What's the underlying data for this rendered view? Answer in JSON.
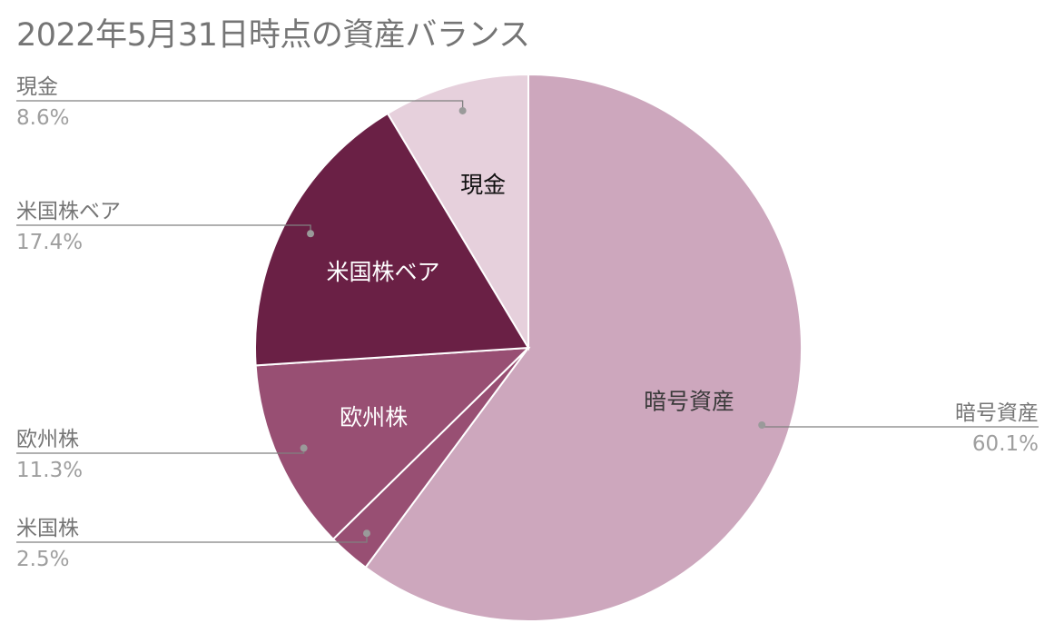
{
  "chart_data": {
    "type": "pie",
    "title": "2022年5月31日時点の資産バランス",
    "slices": [
      {
        "label": "暗号資産",
        "value": 60.1,
        "value_label": "60.1%",
        "color": "#CDA7BD",
        "inner_text_color": "#3a3a3a"
      },
      {
        "label": "米国株",
        "value": 2.5,
        "value_label": "2.5%",
        "color": "#984F73",
        "inner_text_color": "#ffffff"
      },
      {
        "label": "欧州株",
        "value": 11.3,
        "value_label": "11.3%",
        "color": "#984F73",
        "inner_text_color": "#ffffff"
      },
      {
        "label": "米国株ベア",
        "value": 17.4,
        "value_label": "17.4%",
        "color": "#6A2045",
        "inner_text_color": "#ffffff"
      },
      {
        "label": "現金",
        "value": 8.6,
        "value_label": "8.6%",
        "color": "#E6D0DC",
        "inner_text_color": "#111111"
      }
    ],
    "start_angle_deg": 0,
    "direction": "clockwise",
    "legend": "none",
    "callout_label_color": "#757575",
    "callout_value_color": "#9e9e9e",
    "callout_line_color": "#808080"
  }
}
